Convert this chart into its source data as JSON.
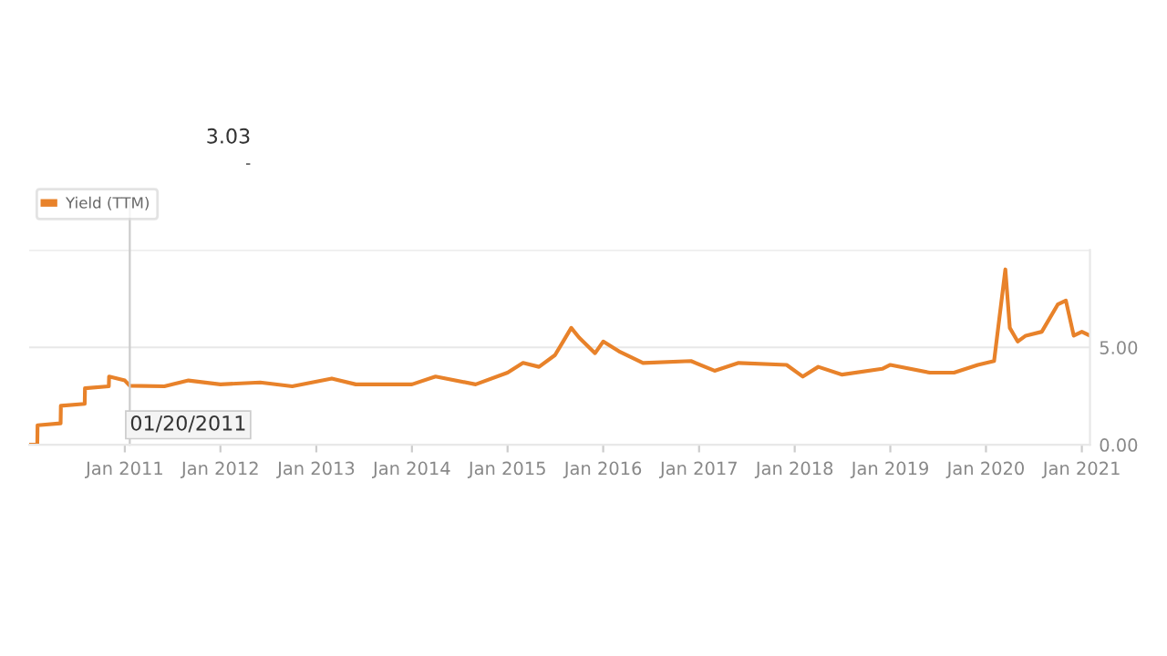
{
  "chart_data": {
    "type": "line",
    "x": [
      "2010-01",
      "2010-02-01",
      "2010-02-02",
      "2010-05-01",
      "2010-05-02",
      "2010-08-01",
      "2010-08-02",
      "2010-11-01",
      "2010-11-02",
      "2011-01-01",
      "2011-01-20",
      "2011-06",
      "2011-09",
      "2012-01",
      "2012-06",
      "2012-10",
      "2013-03",
      "2013-06",
      "2014-01",
      "2014-04",
      "2014-09",
      "2015-01",
      "2015-03",
      "2015-05",
      "2015-07",
      "2015-08",
      "2015-09",
      "2015-10",
      "2015-12",
      "2016-01",
      "2016-03",
      "2016-06",
      "2016-12",
      "2017-03",
      "2017-06",
      "2017-12",
      "2018-02",
      "2018-04",
      "2018-07",
      "2018-12",
      "2019-01",
      "2019-06",
      "2019-09",
      "2019-12",
      "2020-02",
      "2020-03-15",
      "2020-04",
      "2020-05",
      "2020-06",
      "2020-08",
      "2020-10",
      "2020-11",
      "2020-12",
      "2021-01",
      "2021-02"
    ],
    "series": [
      {
        "name": "Yield (TTM)",
        "color": "#e8822a",
        "values": [
          0,
          0,
          1.0,
          1.1,
          2.0,
          2.1,
          2.9,
          3.0,
          3.5,
          3.3,
          3.03,
          3.0,
          3.3,
          3.1,
          3.2,
          3.0,
          3.4,
          3.1,
          3.1,
          3.5,
          3.1,
          3.7,
          4.2,
          4.0,
          4.6,
          5.3,
          6.0,
          5.5,
          4.7,
          5.3,
          4.8,
          4.2,
          4.3,
          3.8,
          4.2,
          4.1,
          3.5,
          4.0,
          3.6,
          3.9,
          4.1,
          3.7,
          3.7,
          4.1,
          4.3,
          9.0,
          6.0,
          5.3,
          5.6,
          5.8,
          7.2,
          7.4,
          5.6,
          5.8,
          5.6
        ]
      }
    ],
    "xlim": [
      "2010-01",
      "2021-02"
    ],
    "xticks": [
      {
        "value": "2011-01",
        "label": "Jan 2011"
      },
      {
        "value": "2012-01",
        "label": "Jan 2012"
      },
      {
        "value": "2013-01",
        "label": "Jan 2013"
      },
      {
        "value": "2014-01",
        "label": "Jan 2014"
      },
      {
        "value": "2015-01",
        "label": "Jan 2015"
      },
      {
        "value": "2016-01",
        "label": "Jan 2016"
      },
      {
        "value": "2017-01",
        "label": "Jan 2017"
      },
      {
        "value": "2018-01",
        "label": "Jan 2018"
      },
      {
        "value": "2019-01",
        "label": "Jan 2019"
      },
      {
        "value": "2020-01",
        "label": "Jan 2020"
      },
      {
        "value": "2021-01",
        "label": "Jan 2021"
      }
    ],
    "ylim": [
      0,
      10
    ],
    "yticks": [
      {
        "value": 0,
        "label": "0.00"
      },
      {
        "value": 5,
        "label": "5.00"
      },
      {
        "value": 10,
        "label": null
      }
    ],
    "grid": "y",
    "legend": "top left",
    "ref_lines": [
      {
        "axis": "x",
        "value": "2011-01-20",
        "label": "01/20/2011",
        "color": "#cccccc"
      }
    ],
    "annotations": [
      "3.03",
      "-"
    ]
  }
}
